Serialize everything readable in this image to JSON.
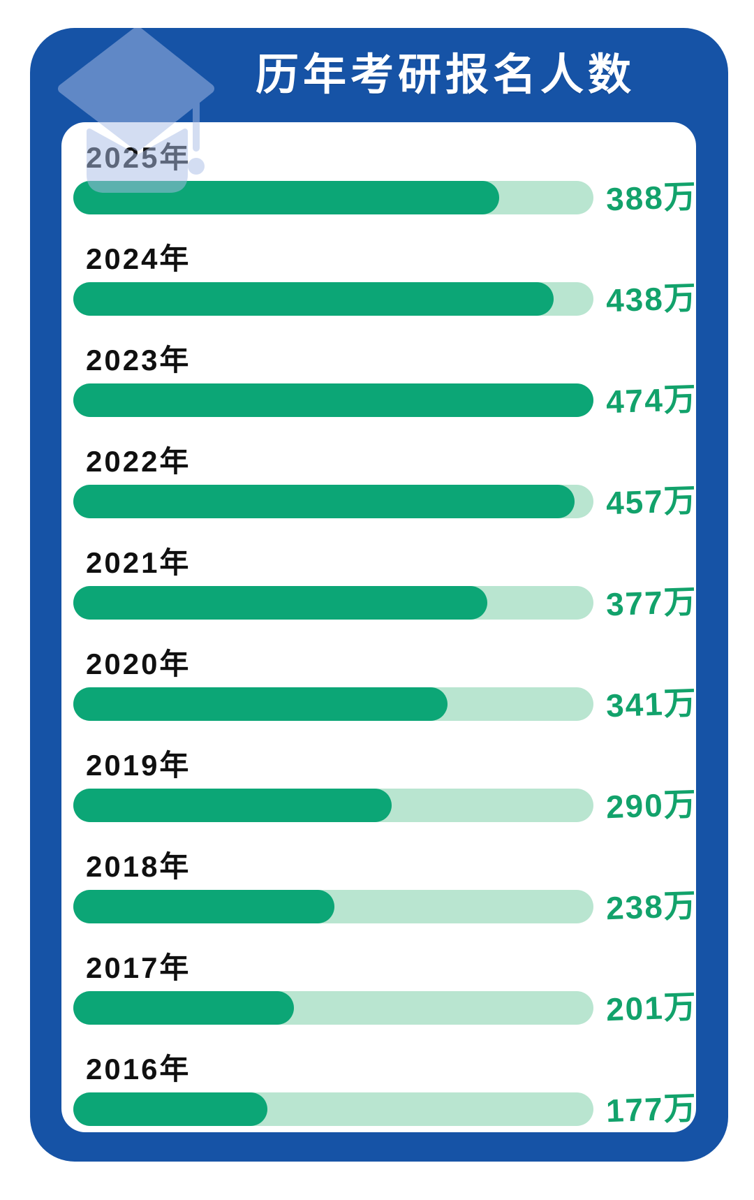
{
  "header": {
    "title": "历年考研报名人数"
  },
  "icons": {
    "graduation_cap": "graduation-cap-icon"
  },
  "colors": {
    "frame_blue": "#1653a6",
    "bar_green": "#0ca676",
    "track_green": "#b9e5d0",
    "value_green": "#12a26b",
    "label_black": "#101010",
    "card_white": "#ffffff"
  },
  "chart_data": {
    "type": "bar",
    "orientation": "horizontal",
    "title": "历年考研报名人数",
    "categories": [
      "2025年",
      "2024年",
      "2023年",
      "2022年",
      "2021年",
      "2020年",
      "2019年",
      "2018年",
      "2017年",
      "2016年"
    ],
    "values": [
      388,
      438,
      474,
      457,
      377,
      341,
      290,
      238,
      201,
      177
    ],
    "unit": "万",
    "value_labels": [
      "388万",
      "438万",
      "474万",
      "457万",
      "377万",
      "341万",
      "290万",
      "238万",
      "201万",
      "177万"
    ],
    "xlim": [
      0,
      474
    ],
    "grid": false,
    "legend": false
  }
}
